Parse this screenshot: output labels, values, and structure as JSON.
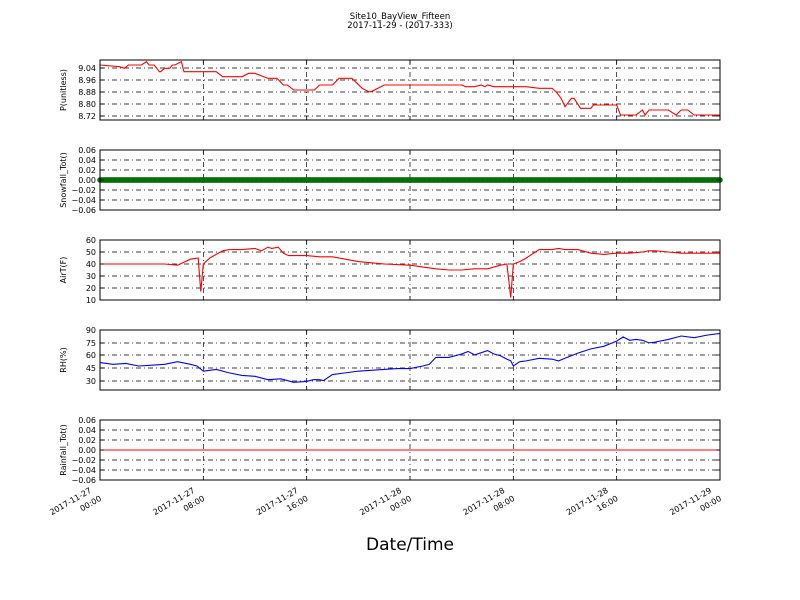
{
  "figure": {
    "title_line1": "Site10_BayView_Fifteen",
    "title_line2": "2017-11-29 - (2017-333)",
    "xlabel": "Date/Time",
    "x_ticks": [
      {
        "l1": "2017-11-27",
        "l2": "00:00",
        "h": 0
      },
      {
        "l1": "2017-11-27",
        "l2": "08:00",
        "h": 8
      },
      {
        "l1": "2017-11-27",
        "l2": "16:00",
        "h": 16
      },
      {
        "l1": "2017-11-28",
        "l2": "00:00",
        "h": 24
      },
      {
        "l1": "2017-11-28",
        "l2": "08:00",
        "h": 32
      },
      {
        "l1": "2017-11-28",
        "l2": "16:00",
        "h": 40
      },
      {
        "l1": "2017-11-29",
        "l2": "00:00",
        "h": 48
      }
    ]
  },
  "chart_data": [
    {
      "type": "line",
      "ylabel": "P(unitless)",
      "ylim": [
        8.71,
        9.07
      ],
      "yticks": [
        "9.04",
        "8.96",
        "8.88",
        "8.80",
        "8.72"
      ],
      "color": "#ff0000",
      "x_unit": "hours since 2017-11-27 00:00",
      "x": [
        0,
        1.5,
        1.9,
        2.2,
        2.6,
        3.2,
        3.6,
        3.8,
        4.2,
        4.6,
        4.7,
        5.0,
        5.4,
        5.6,
        5.8,
        6.3,
        6.5,
        7.0,
        8,
        9,
        9.5,
        10,
        11,
        11.5,
        12,
        13,
        13.7,
        14.2,
        14.5,
        15,
        16,
        16.6,
        17,
        18,
        18.5,
        19,
        19.5,
        20.3,
        20.8,
        21,
        22,
        23,
        24,
        26,
        28,
        28.3,
        29,
        29.5,
        29.8,
        30,
        30.5,
        31.3,
        31.5,
        32,
        33,
        34,
        35,
        35.3,
        35.7,
        36,
        36.5,
        36.7,
        37.2,
        37.5,
        38,
        38.2,
        39,
        39.5,
        40,
        40.3,
        41,
        41.5,
        42,
        42.2,
        42.5,
        43,
        44,
        44.6,
        45,
        45.5,
        46,
        46.5,
        47,
        48
      ],
      "y": [
        9.04,
        9.03,
        9.02,
        9.04,
        9.04,
        9.04,
        9.06,
        9.04,
        9.04,
        9.0,
        9.0,
        9.02,
        9.02,
        9.04,
        9.04,
        9.06,
        9.0,
        9.0,
        9.0,
        9.0,
        8.97,
        8.97,
        8.97,
        8.99,
        8.99,
        8.96,
        8.96,
        8.92,
        8.92,
        8.89,
        8.89,
        8.89,
        8.92,
        8.92,
        8.96,
        8.96,
        8.96,
        8.9,
        8.88,
        8.88,
        8.92,
        8.92,
        8.92,
        8.92,
        8.92,
        8.91,
        8.91,
        8.92,
        8.91,
        8.92,
        8.91,
        8.91,
        8.91,
        8.91,
        8.91,
        8.9,
        8.9,
        8.88,
        8.84,
        8.79,
        8.84,
        8.84,
        8.78,
        8.78,
        8.78,
        8.8,
        8.8,
        8.8,
        8.8,
        8.74,
        8.74,
        8.74,
        8.77,
        8.74,
        8.77,
        8.77,
        8.77,
        8.74,
        8.77,
        8.77,
        8.74,
        8.74,
        8.74,
        8.74
      ]
    },
    {
      "type": "scatter",
      "ylabel": "Snowfall_Tot()",
      "ylim": [
        -0.06,
        0.06
      ],
      "yticks": [
        "0.06",
        "0.04",
        "0.02",
        "0.00",
        "−0.02",
        "−0.04",
        "−0.06"
      ],
      "color": "#008000",
      "x_unit": "hours since 2017-11-27 00:00",
      "x_range": [
        0,
        48
      ],
      "value": 0.0
    },
    {
      "type": "line",
      "ylabel": "AirT(F)",
      "ylim": [
        10,
        60
      ],
      "yticks": [
        "60",
        "50",
        "40",
        "30",
        "20",
        "10"
      ],
      "color": "#ff0000",
      "x_unit": "hours since 2017-11-27 00:00",
      "x": [
        0,
        2,
        4,
        5,
        6,
        7,
        7.6,
        7.8,
        8.0,
        8.5,
        9,
        9.5,
        10,
        11,
        12,
        12.5,
        13,
        13.3,
        13.8,
        14.2,
        14.6,
        15.2,
        16,
        17,
        18,
        19,
        20,
        22,
        24,
        26,
        27,
        28,
        29,
        30,
        31,
        31.5,
        31.8,
        32.0,
        32.5,
        33,
        34,
        35,
        35.5,
        36,
        37,
        38,
        39,
        40,
        41,
        42,
        42.5,
        43,
        44,
        45,
        46,
        47,
        48
      ],
      "y": [
        40,
        40,
        40,
        40,
        39,
        44,
        45,
        17,
        40,
        45,
        48,
        51,
        52,
        52,
        53,
        51,
        54,
        53,
        54,
        49,
        47,
        47,
        47,
        46,
        46,
        44,
        42,
        40,
        39,
        36,
        35,
        35,
        36,
        36,
        39,
        40,
        12,
        40,
        42,
        45,
        52,
        52,
        53,
        52,
        52,
        49,
        48,
        49,
        49,
        50,
        51,
        51,
        50,
        49,
        49,
        49,
        49
      ]
    },
    {
      "type": "line",
      "ylabel": "RH(%)",
      "ylim": [
        20,
        90
      ],
      "yticks": [
        "90",
        "75",
        "60",
        "45",
        "30"
      ],
      "color": "#0000ff",
      "x_unit": "hours since 2017-11-27 00:00",
      "x": [
        0,
        1,
        2,
        3,
        4,
        5,
        6,
        7,
        7.5,
        8,
        9,
        10,
        11,
        12,
        13,
        14,
        15,
        16,
        16.5,
        17,
        17.3,
        18,
        19,
        20,
        21,
        22,
        23,
        24,
        25,
        25.5,
        26,
        27,
        28,
        28.5,
        29,
        30,
        30.5,
        31,
        31.5,
        31.8,
        32.0,
        32.5,
        33,
        34,
        35,
        35.5,
        36,
        37,
        38,
        39,
        40,
        40.5,
        41,
        41.5,
        42,
        42.5,
        43,
        44,
        45,
        46,
        47,
        48
      ],
      "y": [
        52,
        50,
        51,
        48,
        49,
        50,
        53,
        50,
        48,
        42,
        44,
        40,
        37,
        36,
        32,
        33,
        29,
        30,
        32,
        32,
        31,
        38,
        40,
        42,
        43,
        44,
        45,
        45,
        48,
        50,
        58,
        58,
        62,
        65,
        61,
        66,
        62,
        60,
        56,
        54,
        48,
        53,
        54,
        57,
        56,
        54,
        57,
        63,
        68,
        71,
        77,
        82,
        78,
        79,
        78,
        75,
        76,
        79,
        83,
        81,
        84,
        86
      ]
    },
    {
      "type": "line",
      "ylabel": "Rainfall_Tot()",
      "ylim": [
        -0.06,
        0.06
      ],
      "yticks": [
        "0.06",
        "0.04",
        "0.02",
        "0.00",
        "−0.02",
        "−0.04",
        "−0.06"
      ],
      "color": "#ff0000",
      "x_unit": "hours since 2017-11-27 00:00",
      "x": [
        0,
        48
      ],
      "y": [
        0.0,
        0.0
      ]
    }
  ]
}
